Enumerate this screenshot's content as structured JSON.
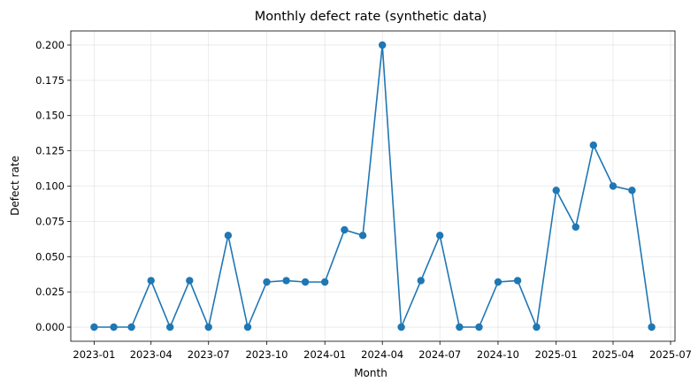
{
  "chart_data": {
    "type": "line",
    "title": "Monthly defect rate (synthetic data)",
    "xlabel": "Month",
    "ylabel": "Defect rate",
    "x_ticks": [
      "2023-01",
      "2023-04",
      "2023-07",
      "2023-10",
      "2024-01",
      "2024-04",
      "2024-07",
      "2024-10",
      "2025-01",
      "2025-04",
      "2025-07"
    ],
    "y_ticks": [
      "0.000",
      "0.025",
      "0.050",
      "0.075",
      "0.100",
      "0.125",
      "0.150",
      "0.175",
      "0.200"
    ],
    "xlim": [
      "2022-11-25",
      "2025-07-08"
    ],
    "ylim": [
      -0.01,
      0.21
    ],
    "grid": true,
    "color": "#1f77b4",
    "series": [
      {
        "x": [
          "2023-01",
          "2023-02",
          "2023-03",
          "2023-04",
          "2023-05",
          "2023-06",
          "2023-07",
          "2023-08",
          "2023-09",
          "2023-10",
          "2023-11",
          "2023-12",
          "2024-01",
          "2024-02",
          "2024-03",
          "2024-04",
          "2024-05",
          "2024-06",
          "2024-07",
          "2024-08",
          "2024-09",
          "2024-10",
          "2024-11",
          "2024-12",
          "2025-01",
          "2025-02",
          "2025-03",
          "2025-04",
          "2025-05",
          "2025-06"
        ],
        "values": [
          0.0,
          0.0,
          0.0,
          0.033,
          0.0,
          0.033,
          0.0,
          0.065,
          0.0,
          0.032,
          0.033,
          0.032,
          0.032,
          0.069,
          0.065,
          0.2,
          0.0,
          0.033,
          0.065,
          0.0,
          0.0,
          0.032,
          0.033,
          0.0,
          0.097,
          0.071,
          0.129,
          0.1,
          0.097,
          0.0
        ]
      }
    ]
  }
}
